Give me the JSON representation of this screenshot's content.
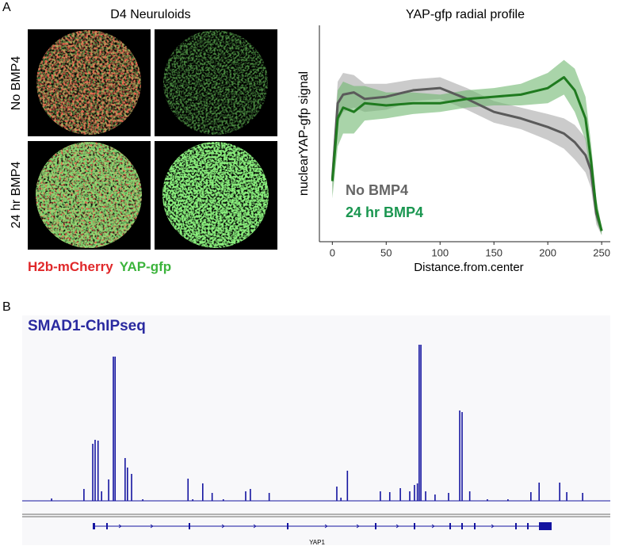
{
  "panels": {
    "a": "A",
    "b": "B"
  },
  "images": {
    "title": "D4 Neuruloids",
    "rows": [
      "No BMP4",
      "24 hr BMP4"
    ],
    "channels": [
      {
        "name": "H2b-mCherry",
        "color": "#e0282a"
      },
      {
        "name": "YAP-gfp",
        "color": "#3cb43c"
      }
    ]
  },
  "chart_data": [
    {
      "type": "line",
      "title": "YAP-gfp radial profile",
      "x_label": "Distance.from.center",
      "y_label": "nuclearYAP-gfp signal",
      "x": [
        0,
        5,
        10,
        20,
        30,
        50,
        75,
        100,
        125,
        150,
        175,
        200,
        215,
        225,
        235,
        240,
        245,
        250
      ],
      "xlim": [
        -12,
        258
      ],
      "xticks": [
        0,
        50,
        100,
        150,
        200,
        250
      ],
      "ylim": [
        0,
        1
      ],
      "series": [
        {
          "name": "No BMP4",
          "color": "#5a5a5a",
          "band_color": "#a8a8a8",
          "label_color": "#666666",
          "values": [
            0.29,
            0.64,
            0.68,
            0.69,
            0.66,
            0.67,
            0.7,
            0.71,
            0.66,
            0.6,
            0.57,
            0.53,
            0.5,
            0.46,
            0.4,
            0.33,
            0.13,
            0.05
          ],
          "lower": [
            0.22,
            0.55,
            0.6,
            0.62,
            0.6,
            0.61,
            0.65,
            0.66,
            0.61,
            0.55,
            0.52,
            0.47,
            0.43,
            0.38,
            0.32,
            0.25,
            0.08,
            0.03
          ],
          "upper": [
            0.36,
            0.74,
            0.78,
            0.77,
            0.73,
            0.73,
            0.75,
            0.76,
            0.71,
            0.65,
            0.62,
            0.59,
            0.57,
            0.54,
            0.48,
            0.41,
            0.18,
            0.07
          ]
        },
        {
          "name": "24 hr BMP4",
          "color": "#1f7a1f",
          "band_color": "#6fb86f",
          "label_color": "#1a9650",
          "values": [
            0.28,
            0.57,
            0.62,
            0.6,
            0.64,
            0.63,
            0.64,
            0.64,
            0.66,
            0.67,
            0.68,
            0.71,
            0.76,
            0.7,
            0.57,
            0.38,
            0.15,
            0.05
          ],
          "lower": [
            0.2,
            0.44,
            0.5,
            0.5,
            0.56,
            0.57,
            0.59,
            0.6,
            0.62,
            0.63,
            0.63,
            0.64,
            0.68,
            0.6,
            0.47,
            0.3,
            0.1,
            0.03
          ],
          "upper": [
            0.36,
            0.7,
            0.74,
            0.72,
            0.72,
            0.69,
            0.69,
            0.68,
            0.7,
            0.71,
            0.73,
            0.78,
            0.84,
            0.8,
            0.67,
            0.46,
            0.2,
            0.07
          ]
        }
      ]
    },
    {
      "type": "coverage",
      "title": "SMAD1-ChIPseq",
      "color": "#1414a0",
      "xlim": [
        0,
        1000
      ],
      "ylim": [
        0,
        100
      ],
      "x": [
        50,
        105,
        120,
        124,
        129,
        135,
        147,
        155,
        158,
        175,
        179,
        186,
        205,
        282,
        290,
        307,
        323,
        342,
        380,
        388,
        420,
        535,
        542,
        553,
        609,
        625,
        643,
        659,
        667,
        672,
        675,
        678,
        686,
        702,
        725,
        744,
        748,
        761,
        791,
        826,
        865,
        879,
        914,
        926,
        953
      ],
      "values": [
        1.5,
        7.5,
        36,
        38.5,
        38,
        6,
        13.5,
        91,
        91,
        27,
        21,
        17,
        1,
        14,
        1,
        11,
        5,
        1,
        6,
        7.5,
        5,
        9,
        2,
        19,
        6,
        5.5,
        8,
        6,
        10,
        11,
        98.5,
        98.5,
        6,
        4,
        5,
        57,
        56,
        6,
        1,
        1,
        5.5,
        11.5,
        11.5,
        5.5,
        5
      ]
    }
  ],
  "gene": {
    "label": "YAP1"
  }
}
